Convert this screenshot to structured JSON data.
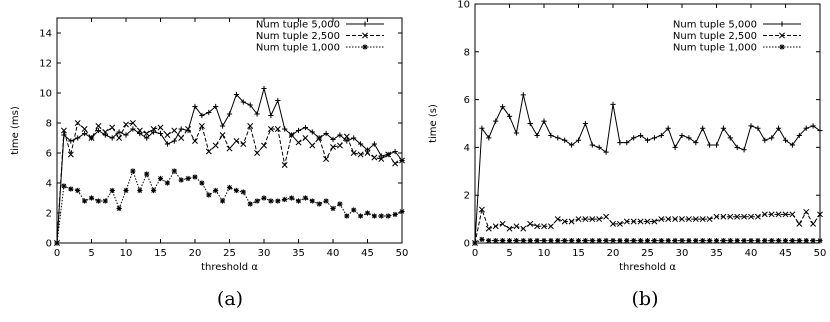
{
  "chart_data": [
    {
      "type": "line",
      "caption": "(a)",
      "xlabel": "threshold α",
      "ylabel": "time (ms)",
      "xlim": [
        0,
        50
      ],
      "ylim": [
        0,
        15
      ],
      "xticks": [
        0,
        5,
        10,
        15,
        20,
        25,
        30,
        35,
        40,
        45,
        50
      ],
      "yticks": [
        0,
        2,
        4,
        6,
        8,
        10,
        12,
        14
      ],
      "legend_position": "top-right",
      "x": [
        0,
        1,
        2,
        3,
        4,
        5,
        6,
        7,
        8,
        9,
        10,
        11,
        12,
        13,
        14,
        15,
        16,
        17,
        18,
        19,
        20,
        21,
        22,
        23,
        24,
        25,
        26,
        27,
        28,
        29,
        30,
        31,
        32,
        33,
        34,
        35,
        36,
        37,
        38,
        39,
        40,
        41,
        42,
        43,
        44,
        45,
        46,
        47,
        48,
        49,
        50
      ],
      "series": [
        {
          "name": "Num tuple 5,000",
          "marker": "plus",
          "dash": "solid",
          "values": [
            0,
            7.2,
            6.8,
            7.0,
            7.3,
            7.0,
            7.5,
            7.2,
            7.0,
            7.4,
            7.2,
            7.6,
            7.3,
            7.0,
            7.4,
            7.3,
            6.6,
            6.8,
            7.6,
            7.5,
            9.1,
            8.5,
            8.7,
            9.1,
            7.8,
            8.6,
            9.9,
            9.4,
            9.2,
            8.6,
            10.3,
            8.5,
            9.5,
            7.6,
            7.2,
            7.5,
            7.7,
            7.4,
            7.0,
            7.3,
            6.9,
            7.2,
            6.8,
            7.0,
            6.6,
            6.2,
            6.6,
            5.8,
            5.9,
            6.1,
            5.5
          ]
        },
        {
          "name": "Num tuple 2,500",
          "marker": "x",
          "dash": "dashed",
          "values": [
            0,
            7.5,
            5.9,
            8.0,
            7.6,
            7.0,
            7.8,
            7.4,
            7.7,
            7.0,
            7.9,
            8.0,
            7.5,
            7.3,
            7.6,
            7.7,
            7.2,
            7.5,
            7.0,
            7.6,
            6.8,
            7.8,
            6.1,
            6.5,
            7.2,
            6.3,
            6.8,
            6.6,
            7.8,
            6.0,
            6.5,
            7.6,
            7.6,
            5.2,
            7.2,
            6.7,
            7.0,
            6.5,
            7.0,
            5.6,
            6.4,
            6.5,
            7.1,
            6.0,
            5.9,
            6.0,
            5.7,
            5.6,
            5.9,
            5.3,
            5.5
          ]
        },
        {
          "name": "Num tuple 1,000",
          "marker": "star",
          "dash": "dotted",
          "values": [
            0,
            3.8,
            3.6,
            3.5,
            2.8,
            3.0,
            2.8,
            2.8,
            3.5,
            2.3,
            3.5,
            4.8,
            3.5,
            4.6,
            3.5,
            4.3,
            4.0,
            4.8,
            4.2,
            4.3,
            4.4,
            4.0,
            3.2,
            3.5,
            2.8,
            3.7,
            3.5,
            3.4,
            2.6,
            2.8,
            3.0,
            2.8,
            2.8,
            2.9,
            3.0,
            2.8,
            3.0,
            2.8,
            2.6,
            2.8,
            2.3,
            2.6,
            1.8,
            2.2,
            1.8,
            2.0,
            1.8,
            1.8,
            1.8,
            1.9,
            2.1
          ]
        }
      ]
    },
    {
      "type": "line",
      "caption": "(b)",
      "xlabel": "threshold α",
      "ylabel": "time (s)",
      "xlim": [
        0,
        50
      ],
      "ylim": [
        0,
        10
      ],
      "xticks": [
        0,
        5,
        10,
        15,
        20,
        25,
        30,
        35,
        40,
        45,
        50
      ],
      "yticks": [
        0,
        2,
        4,
        6,
        8,
        10
      ],
      "legend_position": "top-right",
      "x": [
        0,
        1,
        2,
        3,
        4,
        5,
        6,
        7,
        8,
        9,
        10,
        11,
        12,
        13,
        14,
        15,
        16,
        17,
        18,
        19,
        20,
        21,
        22,
        23,
        24,
        25,
        26,
        27,
        28,
        29,
        30,
        31,
        32,
        33,
        34,
        35,
        36,
        37,
        38,
        39,
        40,
        41,
        42,
        43,
        44,
        45,
        46,
        47,
        48,
        49,
        50
      ],
      "series": [
        {
          "name": "Num tuple 5,000",
          "marker": "plus",
          "dash": "solid",
          "values": [
            0,
            4.8,
            4.4,
            5.1,
            5.7,
            5.3,
            4.6,
            6.2,
            5.0,
            4.5,
            5.1,
            4.5,
            4.4,
            4.3,
            4.1,
            4.3,
            5.0,
            4.1,
            4.0,
            3.8,
            5.8,
            4.2,
            4.2,
            4.4,
            4.5,
            4.3,
            4.4,
            4.5,
            4.8,
            4.0,
            4.5,
            4.4,
            4.2,
            4.8,
            4.1,
            4.1,
            4.8,
            4.4,
            4.0,
            3.9,
            4.9,
            4.8,
            4.3,
            4.4,
            4.8,
            4.3,
            4.1,
            4.5,
            4.8,
            4.9,
            4.7
          ]
        },
        {
          "name": "Num tuple 2,500",
          "marker": "x",
          "dash": "dashed",
          "values": [
            0,
            1.4,
            0.6,
            0.7,
            0.8,
            0.6,
            0.7,
            0.6,
            0.8,
            0.7,
            0.7,
            0.7,
            1.0,
            0.9,
            0.9,
            1.0,
            1.0,
            1.0,
            1.0,
            1.1,
            0.8,
            0.8,
            0.9,
            0.9,
            0.9,
            0.9,
            0.9,
            1.0,
            1.0,
            1.0,
            1.0,
            1.0,
            1.0,
            1.0,
            1.0,
            1.1,
            1.1,
            1.1,
            1.1,
            1.1,
            1.1,
            1.1,
            1.2,
            1.2,
            1.2,
            1.2,
            1.2,
            0.8,
            1.3,
            0.8,
            1.2
          ]
        },
        {
          "name": "Num tuple 1,000",
          "marker": "star",
          "dash": "dotted",
          "values": [
            0,
            0.15,
            0.1,
            0.1,
            0.1,
            0.1,
            0.1,
            0.1,
            0.1,
            0.1,
            0.1,
            0.1,
            0.1,
            0.1,
            0.1,
            0.1,
            0.1,
            0.1,
            0.1,
            0.1,
            0.1,
            0.1,
            0.1,
            0.1,
            0.1,
            0.1,
            0.1,
            0.1,
            0.1,
            0.1,
            0.1,
            0.1,
            0.1,
            0.1,
            0.1,
            0.1,
            0.1,
            0.1,
            0.1,
            0.1,
            0.1,
            0.1,
            0.1,
            0.1,
            0.1,
            0.1,
            0.1,
            0.1,
            0.1,
            0.1,
            0.1
          ]
        }
      ]
    }
  ]
}
